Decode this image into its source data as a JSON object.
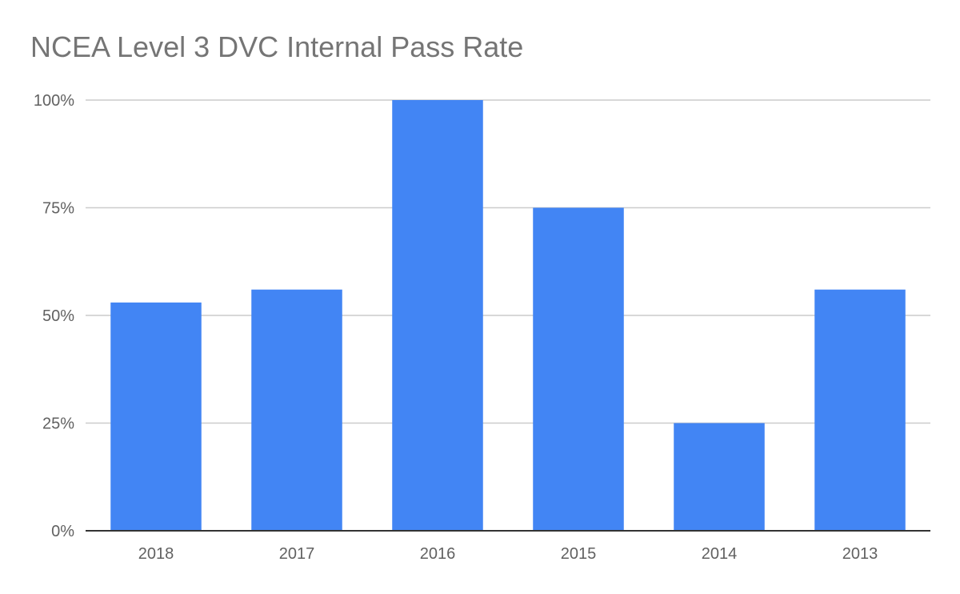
{
  "chart_data": {
    "type": "bar",
    "title": "NCEA Level 3 DVC Internal Pass Rate",
    "xlabel": "",
    "ylabel": "",
    "categories": [
      "2018",
      "2017",
      "2016",
      "2015",
      "2014",
      "2013"
    ],
    "values": [
      53,
      56,
      100,
      75,
      25,
      56
    ],
    "ylim": [
      0,
      100
    ],
    "yticks": [
      0,
      25,
      50,
      75,
      100
    ],
    "ytick_labels": [
      "0%",
      "25%",
      "50%",
      "75%",
      "100%"
    ],
    "grid": true,
    "legend": "none",
    "bar_color": "#4285f4",
    "gridline_color": "#cccccc",
    "axis_color": "#333333"
  }
}
